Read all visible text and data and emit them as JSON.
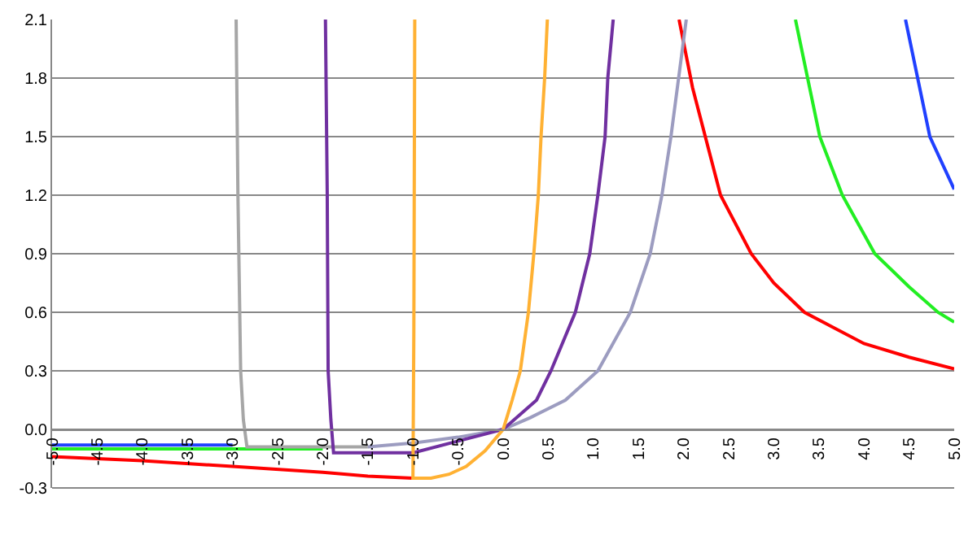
{
  "chart_data": {
    "type": "line",
    "xlim": [
      -5,
      5
    ],
    "ylim": [
      -0.3,
      2.1
    ],
    "xticks": [
      {
        "value": -5,
        "label": "-5.0"
      },
      -4.5,
      {
        "value": -4,
        "label": "-4.0"
      },
      -3.5,
      {
        "value": -3,
        "label": "-3.0"
      },
      -2.5,
      {
        "value": -2,
        "label": "-2.0"
      },
      -1.5,
      {
        "value": -1,
        "label": "-1.0"
      },
      -0.5,
      {
        "value": 0,
        "label": "0.0"
      },
      0.5,
      {
        "value": 1,
        "label": "1.0"
      },
      1.5,
      {
        "value": 2,
        "label": "2.0"
      },
      2.5,
      {
        "value": 3,
        "label": "3.0"
      },
      3.5,
      {
        "value": 4,
        "label": "4.0"
      },
      4.5,
      {
        "value": 5,
        "label": "5.0"
      }
    ],
    "yticks": [
      -0.3,
      {
        "value": 0,
        "label": "0.0"
      },
      0.3,
      0.6,
      0.9,
      1.2,
      1.5,
      1.8,
      2.1
    ],
    "grid": "y",
    "marker": "none",
    "line_style": "solid",
    "series": [
      {
        "color": "#ff0000",
        "x": [
          -5,
          -4,
          -3,
          -2,
          -1.5,
          -1,
          null,
          1.95,
          2.1,
          2.41,
          2.75,
          3.0,
          3.34,
          4.0,
          4.5,
          5
        ],
        "values": [
          -0.14,
          -0.16,
          -0.19,
          -0.22,
          -0.24,
          -0.25,
          null,
          2.1,
          1.75,
          1.2,
          0.9,
          0.75,
          0.6,
          0.44,
          0.37,
          0.31
        ]
      },
      {
        "color": "#22ee22",
        "x": [
          -5,
          -2,
          null,
          3.24,
          3.51,
          3.76,
          4.12,
          4.5,
          4.82,
          5
        ],
        "values": [
          -0.1,
          -0.1,
          null,
          2.1,
          1.5,
          1.2,
          0.9,
          0.73,
          0.6,
          0.55
        ]
      },
      {
        "color": "#2040ff",
        "x": [
          -5,
          -3,
          null,
          4.46,
          4.73,
          5
        ],
        "values": [
          -0.08,
          -0.08,
          null,
          2.1,
          1.5,
          1.23
        ]
      },
      {
        "color": "#a6a6a6",
        "x": [
          -2.96,
          -2.94,
          -2.91,
          -2.88,
          -2.84,
          -2.7,
          -2.0,
          -1.5
        ],
        "values": [
          2.1,
          1.2,
          0.3,
          0.05,
          -0.09,
          -0.09,
          -0.09,
          -0.09
        ]
      },
      {
        "color": "#9c9cc0",
        "x": [
          -1.5,
          -1,
          -0.5,
          0,
          0.3,
          0.69,
          1.05,
          1.41,
          1.63,
          1.76,
          1.86,
          2.03
        ],
        "values": [
          -0.09,
          -0.07,
          -0.04,
          0,
          0.06,
          0.15,
          0.3,
          0.6,
          0.9,
          1.2,
          1.5,
          2.1
        ]
      },
      {
        "color": "#7030a0",
        "x": [
          -1.97,
          -1.95,
          -1.94,
          -1.91,
          -1.88,
          -1.5,
          -1,
          -0.5,
          0,
          0.37,
          0.53,
          0.8,
          0.96,
          1.05,
          1.13,
          1.16,
          1.22
        ],
        "values": [
          2.1,
          1.2,
          0.3,
          0.05,
          -0.12,
          -0.12,
          -0.12,
          -0.06,
          0,
          0.15,
          0.3,
          0.6,
          0.9,
          1.2,
          1.5,
          1.8,
          2.1
        ]
      },
      {
        "color": "#ffb133",
        "x": [
          -0.98,
          -0.99,
          -1,
          -0.8,
          -0.6,
          -0.41,
          -0.2,
          0,
          0.1,
          0.19,
          0.28,
          0.34,
          0.39,
          0.42,
          0.46,
          0.49
        ],
        "values": [
          2.1,
          0.5,
          -0.25,
          -0.25,
          -0.23,
          -0.19,
          -0.11,
          0,
          0.15,
          0.3,
          0.6,
          0.9,
          1.2,
          1.5,
          1.8,
          2.1
        ]
      }
    ]
  }
}
